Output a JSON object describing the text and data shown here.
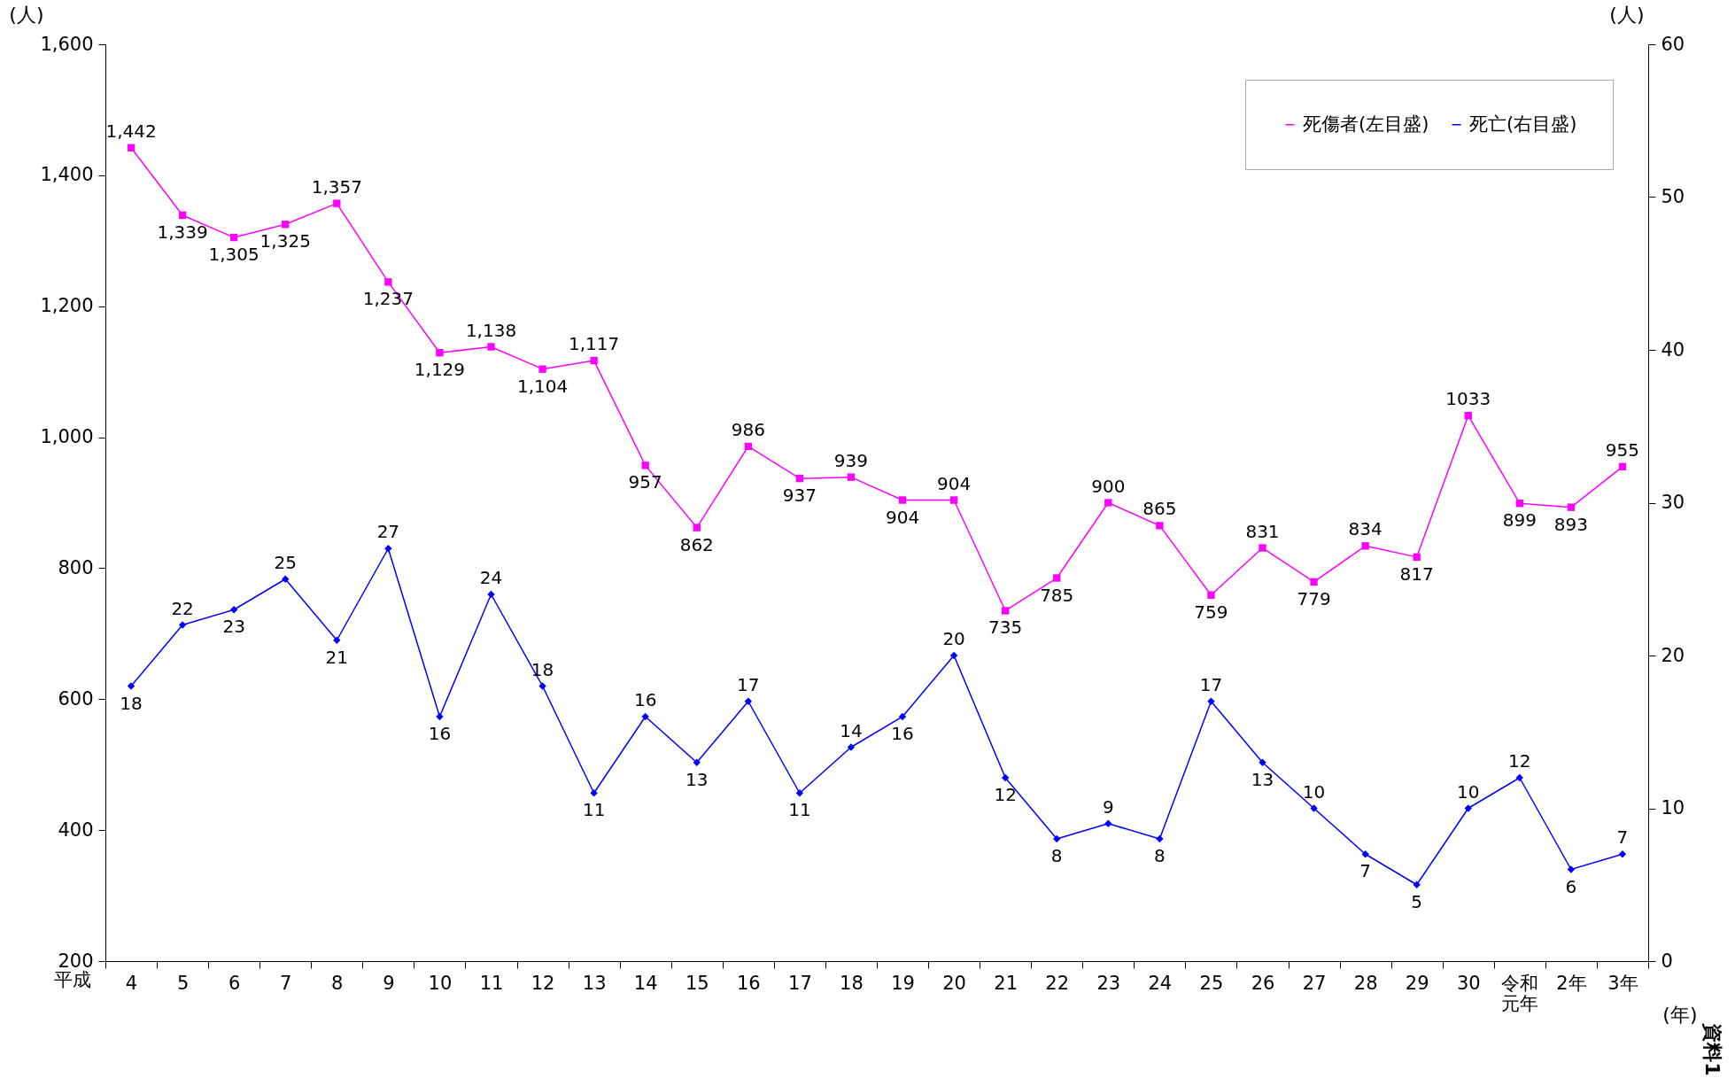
{
  "chart_data": {
    "type": "line",
    "xlabel": "(年)",
    "ylabel": "(人)",
    "y2label": "(人)",
    "categories": [
      "4",
      "5",
      "6",
      "7",
      "8",
      "9",
      "10",
      "11",
      "12",
      "13",
      "14",
      "15",
      "16",
      "17",
      "18",
      "19",
      "20",
      "21",
      "22",
      "23",
      "24",
      "25",
      "26",
      "27",
      "28",
      "29",
      "30",
      "令和元年",
      "2年",
      "3年"
    ],
    "series": [
      {
        "name": "死傷者(左目盛)",
        "color": "#ff00ff",
        "marker": "square",
        "values": [
          1442,
          1339,
          1305,
          1325,
          1357,
          1237,
          1129,
          1138,
          1104,
          1117,
          957,
          862,
          986,
          937,
          939,
          904,
          904,
          735,
          785,
          900,
          865,
          759,
          831,
          779,
          834,
          817,
          1033,
          899,
          893,
          955
        ],
        "value_labels": [
          "1,442",
          "1,339",
          "1,305",
          "1,325",
          "1,357",
          "1,237",
          "1,129",
          "1,138",
          "1,104",
          "1,117",
          "957",
          "862",
          "986",
          "937",
          "939",
          "904",
          "904",
          "735",
          "785",
          "900",
          "865",
          "759",
          "831",
          "779",
          "834",
          "817",
          "1033",
          "899",
          "893",
          "955"
        ]
      },
      {
        "name": "死亡(右目盛)",
        "color": "#0000ff",
        "marker": "diamond",
        "axis": "y2",
        "values": [
          18,
          22,
          23,
          25,
          21,
          27,
          16,
          24,
          18,
          11,
          16,
          13,
          17,
          11,
          14,
          16,
          20,
          12,
          8,
          9,
          8,
          17,
          13,
          10,
          7,
          5,
          10,
          12,
          6,
          7
        ],
        "value_labels": [
          "18",
          "22",
          "23",
          "25",
          "21",
          "27",
          "16",
          "24",
          "18",
          "11",
          "16",
          "13",
          "17",
          "11",
          "14",
          "16",
          "20",
          "12",
          "8",
          "9",
          "8",
          "17",
          "13",
          "10",
          "7",
          "5",
          "10",
          "12",
          "6",
          "7"
        ]
      }
    ],
    "ylim": [
      200,
      1600
    ],
    "yticks": [
      {
        "value": 200,
        "label": "200"
      },
      {
        "value": 400,
        "label": "400"
      },
      {
        "value": 600,
        "label": "600"
      },
      {
        "value": 800,
        "label": "800"
      },
      {
        "value": 1000,
        "label": "1,000"
      },
      {
        "value": 1200,
        "label": "1,200"
      },
      {
        "value": 1400,
        "label": "1,400"
      },
      {
        "value": 1600,
        "label": "1,600"
      }
    ],
    "y2lim": [
      0,
      60
    ],
    "y2ticks": [
      0,
      10,
      20,
      30,
      40,
      50,
      60
    ],
    "legend": "top right",
    "grid": false,
    "annotations": [
      "平成",
      "資料1"
    ]
  }
}
